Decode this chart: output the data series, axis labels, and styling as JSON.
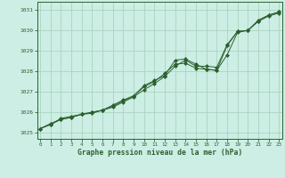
{
  "xlabel": "Graphe pression niveau de la mer (hPa)",
  "bg_color": "#cceee4",
  "grid_color": "#aad4c0",
  "line_color": "#2d6030",
  "x": [
    0,
    1,
    2,
    3,
    4,
    5,
    6,
    7,
    8,
    9,
    10,
    11,
    12,
    13,
    14,
    15,
    16,
    17,
    18,
    19,
    20,
    21,
    22,
    23
  ],
  "line1": [
    1025.2,
    1025.4,
    1025.7,
    1025.8,
    1025.9,
    1025.95,
    1026.1,
    1026.25,
    1026.5,
    1026.75,
    1027.1,
    1027.4,
    1027.75,
    1028.25,
    1028.55,
    1028.25,
    1028.25,
    1028.2,
    1029.3,
    1029.95,
    1030.0,
    1030.5,
    1030.75,
    1030.9
  ],
  "line2": [
    1025.2,
    1025.4,
    1025.65,
    1025.75,
    1025.9,
    1026.0,
    1026.1,
    1026.35,
    1026.6,
    1026.8,
    1027.3,
    1027.55,
    1027.8,
    1028.55,
    1028.6,
    1028.35,
    1028.1,
    1028.05,
    1028.8,
    1029.9,
    1030.0,
    1030.45,
    1030.75,
    1030.9
  ],
  "line3": [
    1025.2,
    1025.45,
    1025.65,
    1025.75,
    1025.9,
    1026.0,
    1026.1,
    1026.3,
    1026.55,
    1026.8,
    1027.25,
    1027.5,
    1027.9,
    1028.35,
    1028.4,
    1028.15,
    1028.1,
    1028.05,
    1029.25,
    1029.95,
    1030.0,
    1030.45,
    1030.7,
    1030.85
  ],
  "ylim": [
    1024.7,
    1031.4
  ],
  "xlim": [
    -0.3,
    23.3
  ],
  "yticks": [
    1025,
    1026,
    1027,
    1028,
    1029,
    1030,
    1031
  ],
  "xticks": [
    0,
    1,
    2,
    3,
    4,
    5,
    6,
    7,
    8,
    9,
    10,
    11,
    12,
    13,
    14,
    15,
    16,
    17,
    18,
    19,
    20,
    21,
    22,
    23
  ]
}
